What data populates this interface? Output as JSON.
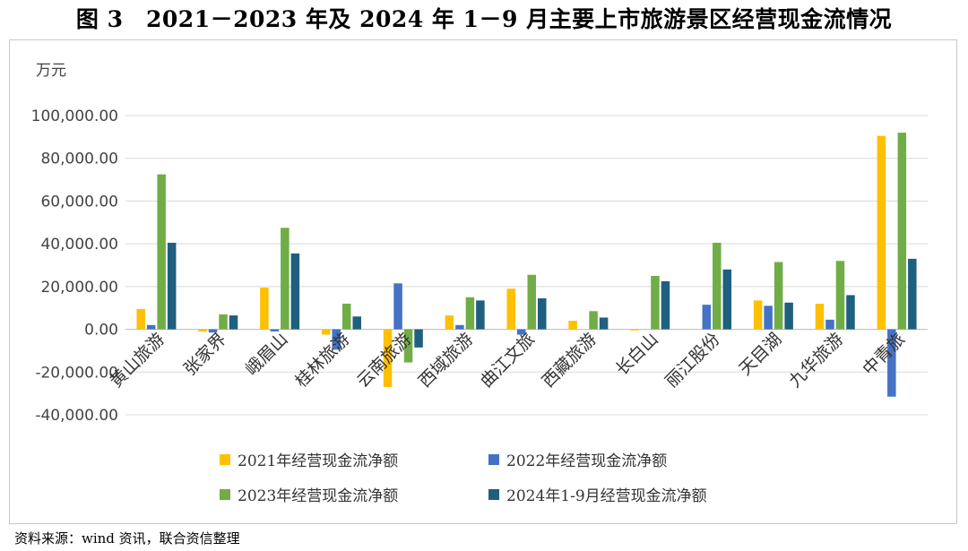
{
  "title": "图 3　2021－2023 年及 2024 年 1－9 月主要上市旅游景区经营现金流情况",
  "source": "资料来源：wind 资讯，联合资信整理",
  "chart_data": {
    "type": "bar",
    "unit_label": "万元",
    "categories": [
      "黄山旅游",
      "张家界",
      "峨眉山",
      "桂林旅游",
      "云南旅游",
      "西域旅游",
      "曲江文旅",
      "西藏旅游",
      "长白山",
      "丽江股份",
      "天目湖",
      "九华旅游",
      "中青旅"
    ],
    "ylim": [
      -40000,
      100000
    ],
    "yticks": [
      -40000,
      -20000,
      0,
      20000,
      40000,
      60000,
      80000,
      100000
    ],
    "ytick_labels": [
      "-40,000.00",
      "-20,000.00",
      "0.00",
      "20,000.00",
      "40,000.00",
      "60,000.00",
      "80,000.00",
      "100,000.00"
    ],
    "grid": true,
    "legend_position": "bottom",
    "series": [
      {
        "name": "2021年经营现金流净额",
        "color": "#FFC000",
        "values": [
          9500,
          -1000,
          19500,
          -2500,
          -27000,
          6500,
          19000,
          4000,
          -500,
          0,
          13500,
          12000,
          90500
        ]
      },
      {
        "name": "2022年经营现金流净额",
        "color": "#4472C4",
        "values": [
          2000,
          -1500,
          -1000,
          -9500,
          21500,
          2000,
          -2500,
          0,
          0,
          11500,
          11000,
          4500,
          -31500
        ]
      },
      {
        "name": "2023年经营现金流净额",
        "color": "#70AD47",
        "values": [
          72500,
          7000,
          47500,
          12000,
          -15500,
          15000,
          25500,
          8500,
          25000,
          40500,
          31500,
          32000,
          92000
        ]
      },
      {
        "name": "2024年1-9月经营现金流净额",
        "color": "#1F5F7F",
        "values": [
          40500,
          6500,
          35500,
          6000,
          -8500,
          13500,
          14500,
          5500,
          22500,
          28000,
          12500,
          16000,
          33000
        ]
      }
    ]
  }
}
